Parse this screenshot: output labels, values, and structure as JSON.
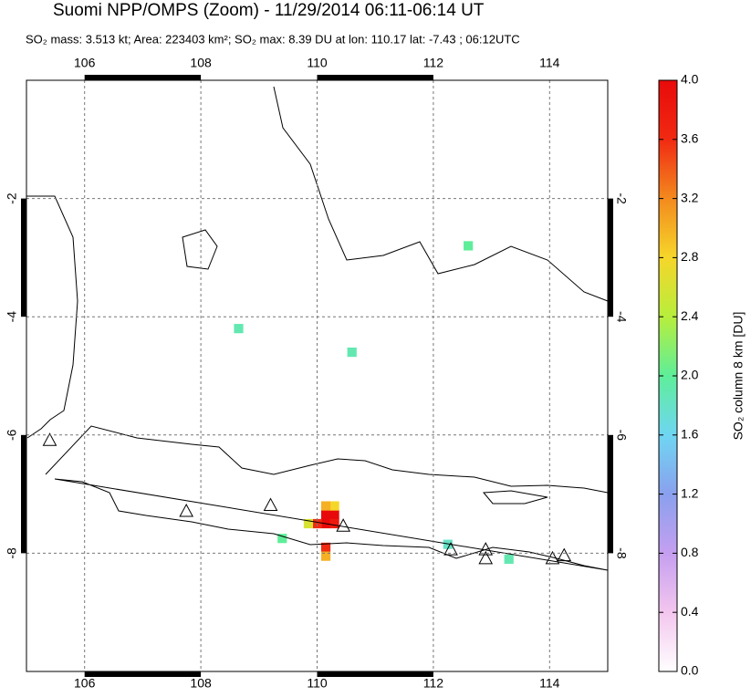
{
  "chart_data": {
    "type": "map",
    "title": "Suomi NPP/OMPS (Zoom) - 11/29/2014 06:11-06:14 UT",
    "subtitle": "SO₂ mass: 3.513 kt; Area: 223403 km²; SO₂ max: 8.39 DU at lon: 110.17 lat: -7.43 ; 06:12UTC",
    "xlim": [
      105,
      115
    ],
    "ylim": [
      -10,
      0
    ],
    "xticks": [
      106,
      108,
      110,
      112,
      114
    ],
    "yticks": [
      -2,
      -4,
      -6,
      -8
    ],
    "grid": true,
    "colorbar": {
      "label": "SO₂ column 8 km [DU]",
      "lim": [
        0,
        4
      ],
      "ticks": [
        {
          "value": 0,
          "label": "0.0"
        },
        {
          "value": 0.4,
          "label": "0.4"
        },
        {
          "value": 0.8,
          "label": "0.8"
        },
        {
          "value": 1.2,
          "label": "1.2"
        },
        {
          "value": 1.6,
          "label": "1.6"
        },
        {
          "value": 2,
          "label": "2.0"
        },
        {
          "value": 2.4,
          "label": "2.4"
        },
        {
          "value": 2.8,
          "label": "2.8"
        },
        {
          "value": 3.2,
          "label": "3.2"
        },
        {
          "value": 3.6,
          "label": "3.6"
        },
        {
          "value": 4,
          "label": "4.0"
        }
      ],
      "colors": [
        "#ffffff",
        "#f3c6ee",
        "#c59ff0",
        "#8aa0ee",
        "#6fd6f2",
        "#5eee9a",
        "#b8ee3c",
        "#f6d62a",
        "#f38a1e",
        "#f12a12",
        "#e80a0a"
      ]
    },
    "pixels": [
      {
        "lon": 110.15,
        "lat": -7.35,
        "value": 4
      },
      {
        "lon": 110.3,
        "lat": -7.35,
        "value": 4
      },
      {
        "lon": 110.15,
        "lat": -7.5,
        "value": 4
      },
      {
        "lon": 110.3,
        "lat": -7.5,
        "value": 3.8
      },
      {
        "lon": 110.0,
        "lat": -7.5,
        "value": 3.6
      },
      {
        "lon": 110.3,
        "lat": -7.2,
        "value": 2.8
      },
      {
        "lon": 110.15,
        "lat": -7.2,
        "value": 3.0
      },
      {
        "lon": 109.85,
        "lat": -7.5,
        "value": 2.6
      },
      {
        "lon": 110.15,
        "lat": -7.9,
        "value": 3.6
      },
      {
        "lon": 110.15,
        "lat": -8.05,
        "value": 3.0
      },
      {
        "lon": 109.4,
        "lat": -7.75,
        "value": 2.0
      },
      {
        "lon": 112.25,
        "lat": -7.85,
        "value": 1.8
      },
      {
        "lon": 113.3,
        "lat": -8.1,
        "value": 1.9
      },
      {
        "lon": 110.6,
        "lat": -4.6,
        "value": 1.9
      },
      {
        "lon": 108.65,
        "lat": -4.2,
        "value": 1.9
      },
      {
        "lon": 112.6,
        "lat": -2.8,
        "value": 2.0
      }
    ],
    "volcanoes": [
      [
        105.4,
        -6.1
      ],
      [
        107.75,
        -7.3
      ],
      [
        109.2,
        -7.2
      ],
      [
        110.45,
        -7.55
      ],
      [
        112.3,
        -7.95
      ],
      [
        112.9,
        -7.95
      ],
      [
        112.9,
        -8.1
      ],
      [
        114.05,
        -8.1
      ],
      [
        114.25,
        -8.05
      ]
    ]
  }
}
